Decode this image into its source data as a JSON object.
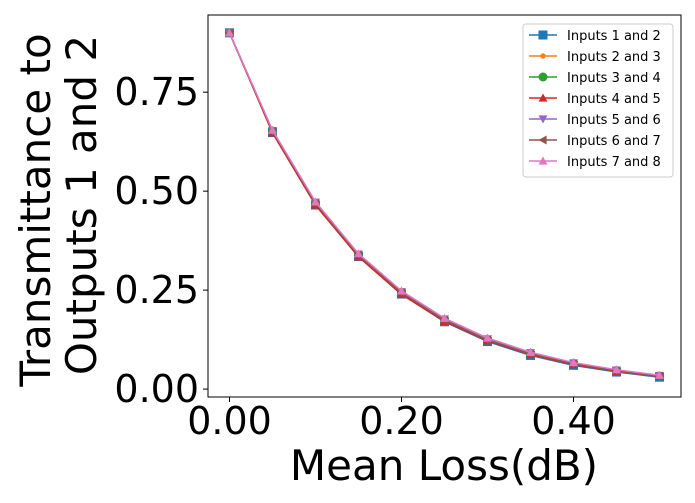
{
  "chart_data": {
    "type": "line",
    "xlabel": "Mean Loss(dB)",
    "ylabel_lines": [
      "Transmittance to",
      "Outputs 1 and 2"
    ],
    "xlim": [
      -0.025,
      0.525
    ],
    "ylim": [
      -0.02,
      0.945
    ],
    "xticks": [
      0.0,
      0.2,
      0.4
    ],
    "xtick_labels": [
      "0.00",
      "0.20",
      "0.40"
    ],
    "yticks": [
      0.0,
      0.25,
      0.5,
      0.75
    ],
    "ytick_labels": [
      "0.00",
      "0.25",
      "0.50",
      "0.75"
    ],
    "grid": false,
    "legend_position": "top-right",
    "x": [
      0.0,
      0.05,
      0.1,
      0.15,
      0.2,
      0.25,
      0.3,
      0.35,
      0.4,
      0.45,
      0.5
    ],
    "series": [
      {
        "name": "Inputs 1 and 2",
        "color": "#1f77b4",
        "marker": "square",
        "values": [
          0.9,
          0.648,
          0.465,
          0.335,
          0.24,
          0.17,
          0.12,
          0.085,
          0.06,
          0.043,
          0.03
        ]
      },
      {
        "name": "Inputs 2 and 3",
        "color": "#ff7f0e",
        "marker": "point",
        "values": [
          0.9,
          0.65,
          0.468,
          0.337,
          0.242,
          0.173,
          0.123,
          0.088,
          0.063,
          0.045,
          0.032
        ]
      },
      {
        "name": "Inputs 3 and 4",
        "color": "#2ca02c",
        "marker": "circle",
        "values": [
          0.9,
          0.652,
          0.47,
          0.339,
          0.244,
          0.175,
          0.125,
          0.09,
          0.065,
          0.047,
          0.033
        ]
      },
      {
        "name": "Inputs 4 and 5",
        "color": "#d62728",
        "marker": "triangle-up",
        "values": [
          0.9,
          0.647,
          0.465,
          0.334,
          0.239,
          0.171,
          0.122,
          0.087,
          0.062,
          0.045,
          0.032
        ]
      },
      {
        "name": "Inputs 5 and 6",
        "color": "#9467bd",
        "marker": "triangle-down",
        "values": [
          0.9,
          0.653,
          0.472,
          0.341,
          0.246,
          0.177,
          0.127,
          0.092,
          0.066,
          0.048,
          0.034
        ]
      },
      {
        "name": "Inputs 6 and 7",
        "color": "#8c564b",
        "marker": "triangle-left",
        "values": [
          0.9,
          0.651,
          0.469,
          0.338,
          0.243,
          0.174,
          0.124,
          0.089,
          0.064,
          0.046,
          0.033
        ]
      },
      {
        "name": "Inputs 7 and 8",
        "color": "#e377c2",
        "marker": "triangle-up",
        "values": [
          0.9,
          0.654,
          0.473,
          0.342,
          0.248,
          0.179,
          0.129,
          0.093,
          0.067,
          0.049,
          0.035
        ]
      }
    ]
  }
}
